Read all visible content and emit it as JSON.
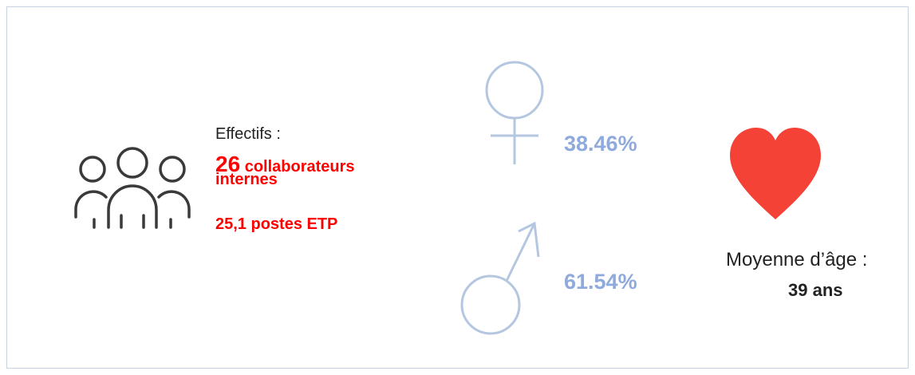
{
  "effectifs": {
    "label": "Effectifs :",
    "count": "26",
    "count_text": "collaborateurs",
    "count_text2": "internes",
    "etp": "25,1 postes ETP"
  },
  "gender": {
    "female": "38.46%",
    "male": "61.54%"
  },
  "age": {
    "label": "Moyenne d’âge :",
    "value": "39 ans"
  }
}
